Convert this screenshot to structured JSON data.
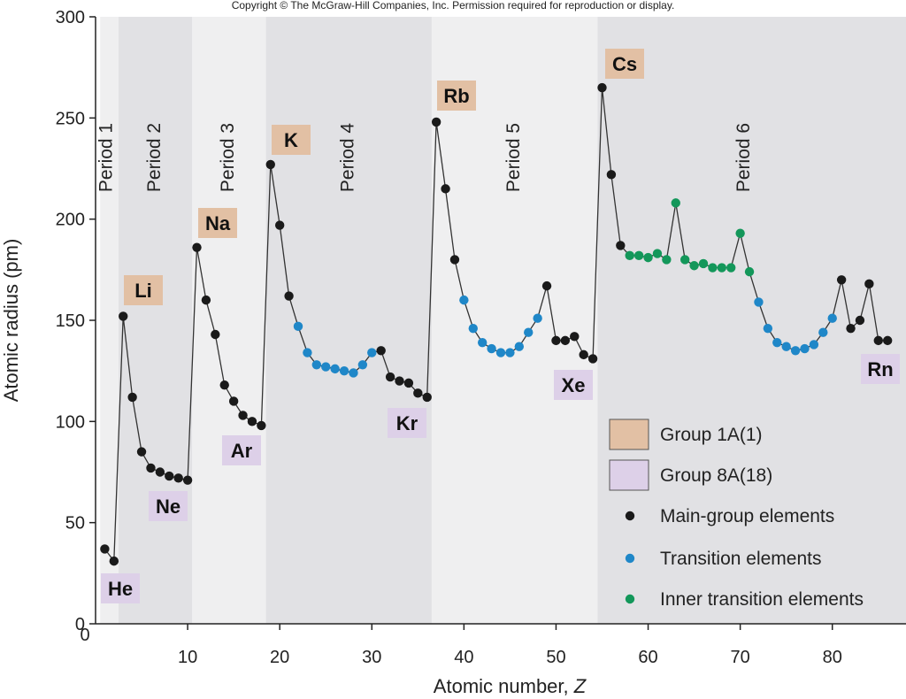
{
  "copyright": "Copyright © The McGraw-Hill Companies, Inc. Permission required for reproduction or display.",
  "chart_data": {
    "type": "line",
    "xlabel": "Atomic number, Z",
    "ylabel": "Atomic radius (pm)",
    "xlim": [
      0,
      88
    ],
    "ylim": [
      0,
      300
    ],
    "x_ticks": [
      0,
      10,
      20,
      30,
      40,
      50,
      60,
      70,
      80
    ],
    "y_ticks": [
      0,
      50,
      100,
      150,
      200,
      250,
      300
    ],
    "colors": {
      "main_group": "#1a1a1a",
      "transition": "#1f87c8",
      "inner_transition": "#13975a",
      "group1a": "#e2c0a4",
      "group8a": "#ddd0e8",
      "period_shade_dark": "#e1e1e4",
      "period_shade_light": "#efeff0",
      "line": "#333333"
    },
    "periods": [
      {
        "label": "Period 1",
        "z_range": [
          0.5,
          2.5
        ],
        "shade": "light"
      },
      {
        "label": "Period 2",
        "z_range": [
          2.5,
          10.5
        ],
        "shade": "dark"
      },
      {
        "label": "Period 3",
        "z_range": [
          10.5,
          18.5
        ],
        "shade": "light"
      },
      {
        "label": "Period 4",
        "z_range": [
          18.5,
          36.5
        ],
        "shade": "dark"
      },
      {
        "label": "Period 5",
        "z_range": [
          36.5,
          54.5
        ],
        "shade": "light"
      },
      {
        "label": "Period 6",
        "z_range": [
          54.5,
          88
        ],
        "shade": "dark"
      }
    ],
    "series": [
      {
        "name": "Main-group elements",
        "x": [
          1,
          2,
          3,
          4,
          5,
          6,
          7,
          8,
          9,
          10,
          11,
          12,
          13,
          14,
          15,
          16,
          17,
          18,
          19,
          20,
          21,
          31,
          32,
          33,
          34,
          35,
          36,
          37,
          38,
          39,
          49,
          50,
          51,
          52,
          53,
          54,
          55,
          56,
          57,
          81,
          82,
          83,
          84,
          85,
          86
        ],
        "y": [
          37,
          31,
          152,
          112,
          85,
          77,
          75,
          73,
          72,
          71,
          186,
          160,
          143,
          118,
          110,
          103,
          100,
          98,
          227,
          197,
          162,
          135,
          122,
          120,
          119,
          114,
          112,
          248,
          215,
          180,
          167,
          140,
          140,
          142,
          133,
          131,
          265,
          222,
          187,
          170,
          146,
          150,
          168,
          140,
          140
        ]
      },
      {
        "name": "Transition elements",
        "x": [
          21,
          22,
          23,
          24,
          25,
          26,
          27,
          28,
          29,
          30,
          39,
          40,
          41,
          42,
          43,
          44,
          45,
          46,
          47,
          48,
          57,
          72,
          73,
          74,
          75,
          76,
          77,
          78,
          79,
          80
        ],
        "y": [
          162,
          147,
          134,
          128,
          127,
          126,
          125,
          124,
          128,
          134,
          180,
          160,
          146,
          139,
          136,
          134,
          134,
          137,
          144,
          151,
          187,
          159,
          146,
          139,
          137,
          135,
          136,
          138,
          144,
          151
        ]
      },
      {
        "name": "Inner transition elements",
        "x": [
          58,
          59,
          60,
          61,
          62,
          63,
          64,
          65,
          66,
          67,
          68,
          69,
          70,
          71
        ],
        "y": [
          182,
          182,
          181,
          183,
          180,
          208,
          180,
          177,
          178,
          176,
          176,
          176,
          193,
          174
        ]
      }
    ],
    "element_labels": [
      {
        "symbol": "He",
        "group": "8A",
        "z": 2,
        "r": 31
      },
      {
        "symbol": "Li",
        "group": "1A",
        "z": 3,
        "r": 152
      },
      {
        "symbol": "Ne",
        "group": "8A",
        "z": 10,
        "r": 71
      },
      {
        "symbol": "Na",
        "group": "1A",
        "z": 11,
        "r": 186
      },
      {
        "symbol": "Ar",
        "group": "8A",
        "z": 18,
        "r": 98
      },
      {
        "symbol": "K",
        "group": "1A",
        "z": 19,
        "r": 227
      },
      {
        "symbol": "Kr",
        "group": "8A",
        "z": 36,
        "r": 112
      },
      {
        "symbol": "Rb",
        "group": "1A",
        "z": 37,
        "r": 248
      },
      {
        "symbol": "Xe",
        "group": "8A",
        "z": 54,
        "r": 131
      },
      {
        "symbol": "Cs",
        "group": "1A",
        "z": 55,
        "r": 265
      },
      {
        "symbol": "Rn",
        "group": "8A",
        "z": 86,
        "r": 140
      }
    ],
    "legend": {
      "placement": "bottom-right",
      "items": [
        {
          "label": "Group 1A(1)",
          "kind": "swatch",
          "key": "group1a"
        },
        {
          "label": "Group 8A(18)",
          "kind": "swatch",
          "key": "group8a"
        },
        {
          "label": "Main-group elements",
          "kind": "dot",
          "key": "main_group"
        },
        {
          "label": "Transition elements",
          "kind": "dot",
          "key": "transition"
        },
        {
          "label": "Inner transition elements",
          "kind": "dot",
          "key": "inner_transition"
        }
      ]
    }
  }
}
